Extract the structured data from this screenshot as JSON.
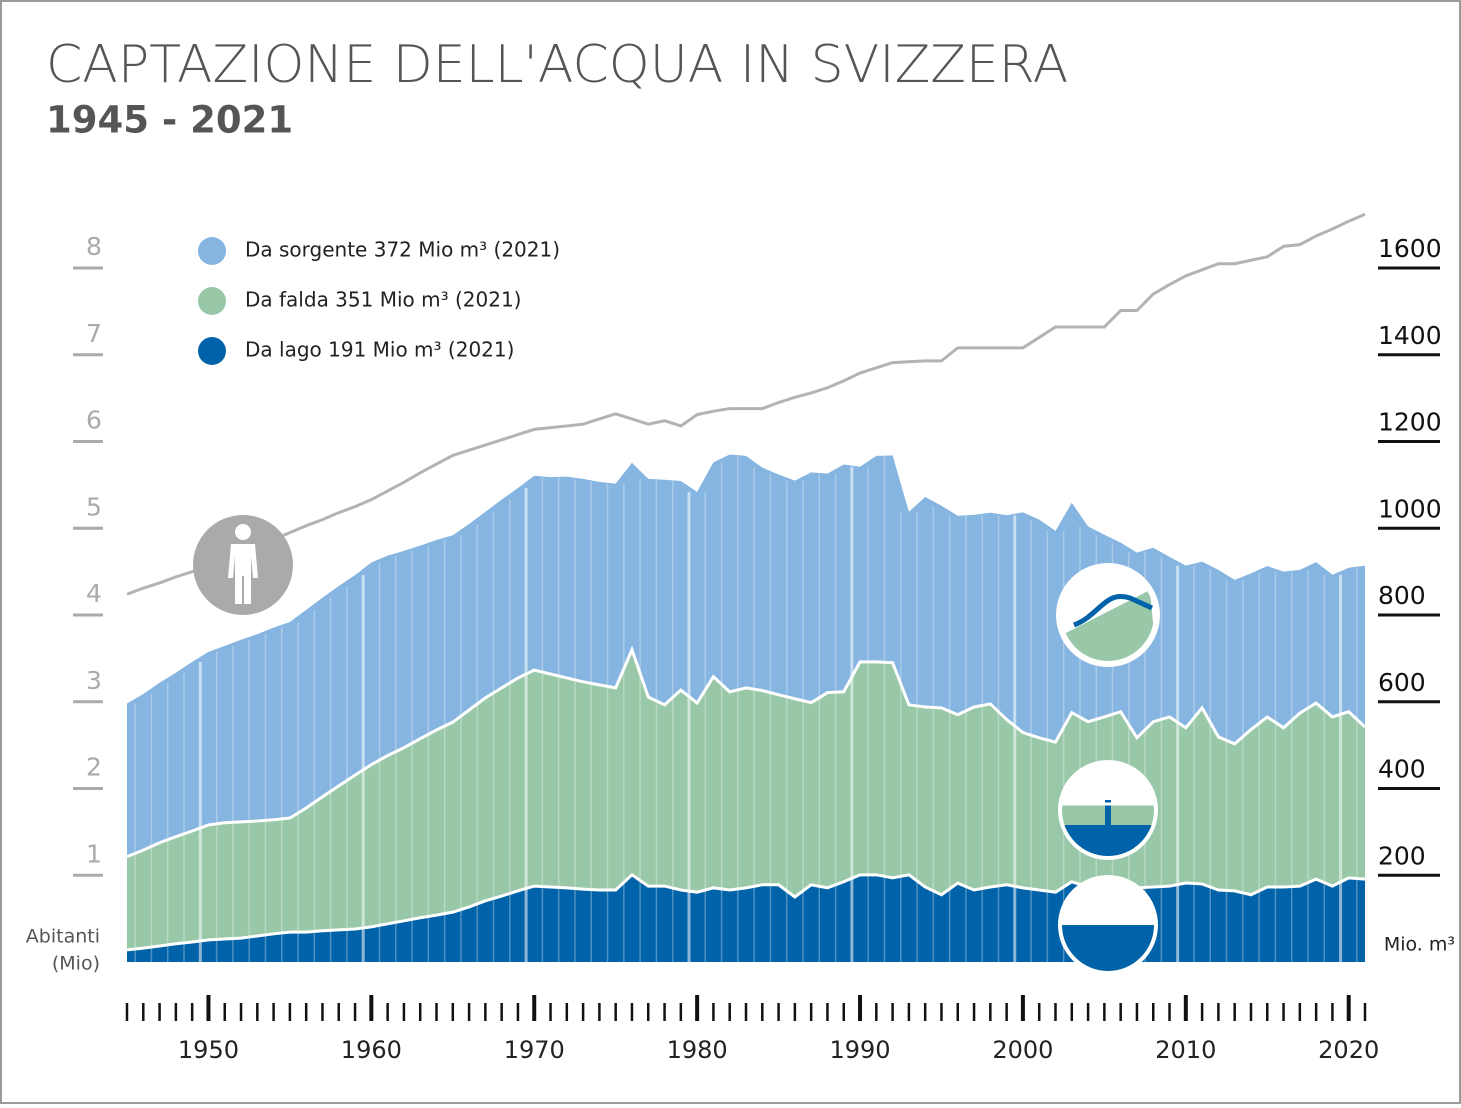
{
  "chart_data": {
    "type": "stacked-area",
    "title": "CAPTAZIONE DELL'ACQUA IN SVIZZERA",
    "subtitle": "1945 - 2021",
    "y_label_lines": [
      "Abitanti",
      "(Mio)"
    ],
    "y2_label": "Mio. m³",
    "x": [
      1945,
      1946,
      1947,
      1948,
      1949,
      1950,
      1951,
      1952,
      1953,
      1954,
      1955,
      1956,
      1957,
      1958,
      1959,
      1960,
      1961,
      1962,
      1963,
      1964,
      1965,
      1966,
      1967,
      1968,
      1969,
      1970,
      1971,
      1972,
      1973,
      1974,
      1975,
      1976,
      1977,
      1978,
      1979,
      1980,
      1981,
      1982,
      1983,
      1984,
      1985,
      1986,
      1987,
      1988,
      1989,
      1990,
      1991,
      1992,
      1993,
      1994,
      1995,
      1996,
      1997,
      1998,
      1999,
      2000,
      2001,
      2002,
      2003,
      2004,
      2005,
      2006,
      2007,
      2008,
      2009,
      2010,
      2011,
      2012,
      2013,
      2014,
      2015,
      2016,
      2017,
      2018,
      2019,
      2020,
      2021
    ],
    "xlim": [
      1945,
      2021
    ],
    "xticks": [
      1950,
      1960,
      1970,
      1980,
      1990,
      2000,
      2010,
      2020
    ],
    "ylim": [
      0,
      8.75
    ],
    "yticks": [
      1,
      2,
      3,
      4,
      5,
      6,
      7,
      8
    ],
    "y2lim": [
      0,
      1750
    ],
    "y2ticks": [
      200,
      400,
      600,
      800,
      1000,
      1200,
      1400,
      1600
    ],
    "series": [
      {
        "name": "Da lago 191 Mio m³ (2021)",
        "color": "#0062a8",
        "axis": "y2",
        "values": [
          28,
          32,
          37,
          42,
          46,
          51,
          53,
          55,
          60,
          65,
          69,
          69,
          72,
          74,
          76,
          81,
          88,
          95,
          102,
          108,
          115,
          127,
          141,
          152,
          164,
          175,
          173,
          171,
          168,
          166,
          166,
          201,
          175,
          175,
          166,
          161,
          171,
          166,
          171,
          178,
          178,
          150,
          178,
          171,
          185,
          201,
          201,
          194,
          201,
          173,
          155,
          182,
          166,
          173,
          178,
          171,
          166,
          161,
          185,
          173,
          161,
          178,
          171,
          173,
          175,
          182,
          180,
          166,
          164,
          155,
          173,
          173,
          175,
          191,
          175,
          194,
          191
        ]
      },
      {
        "name": "Da falda 351 Mio m³ (2021)",
        "color": "#98c8a8",
        "axis": "y2",
        "values": [
          215,
          226,
          238,
          247,
          256,
          265,
          268,
          268,
          265,
          263,
          263,
          286,
          309,
          332,
          355,
          374,
          388,
          399,
          413,
          427,
          438,
          454,
          468,
          480,
          491,
          498,
          491,
          484,
          478,
          473,
          466,
          519,
          436,
          418,
          461,
          436,
          487,
          457,
          461,
          448,
          438,
          457,
          420,
          450,
          438,
          491,
          491,
          496,
          392,
          415,
          431,
          388,
          422,
          422,
          381,
          358,
          351,
          346,
          390,
          381,
          404,
          399,
          346,
          381,
          390,
          358,
          406,
          353,
          339,
          381,
          392,
          367,
          399,
          406,
          390,
          383,
          351
        ]
      },
      {
        "name": "Da sorgente 372 Mio m³ (2021)",
        "color": "#85b5e0",
        "axis": "y2",
        "values": [
          353,
          360,
          369,
          378,
          390,
          399,
          408,
          420,
          431,
          443,
          452,
          457,
          459,
          461,
          461,
          466,
          461,
          454,
          445,
          438,
          431,
          429,
          429,
          434,
          438,
          448,
          454,
          464,
          468,
          468,
          471,
          431,
          503,
          519,
          482,
          487,
          494,
          547,
          535,
          514,
          508,
          503,
          531,
          505,
          524,
          450,
          475,
          478,
          445,
          484,
          466,
          459,
          443,
          441,
          471,
          508,
          503,
          487,
          484,
          450,
          420,
          390,
          427,
          401,
          369,
          374,
          337,
          385,
          378,
          360,
          348,
          360,
          330,
          325,
          328,
          332,
          372
        ]
      }
    ],
    "population": {
      "color": "#b3b3b3",
      "values": [
        4.24,
        4.31,
        4.37,
        4.44,
        4.5,
        4.57,
        4.65,
        4.72,
        4.8,
        4.87,
        4.95,
        5.03,
        5.1,
        5.18,
        5.25,
        5.33,
        5.43,
        5.53,
        5.64,
        5.74,
        5.84,
        5.9,
        5.96,
        6.02,
        6.08,
        6.14,
        6.16,
        6.18,
        6.2,
        6.26,
        6.32,
        6.26,
        6.2,
        6.24,
        6.18,
        6.31,
        6.35,
        6.38,
        6.38,
        6.38,
        6.45,
        6.51,
        6.56,
        6.62,
        6.7,
        6.79,
        6.85,
        6.91,
        6.92,
        6.93,
        6.93,
        7.08,
        7.08,
        7.08,
        7.08,
        7.08,
        7.2,
        7.32,
        7.32,
        7.32,
        7.32,
        7.51,
        7.51,
        7.7,
        7.81,
        7.91,
        7.98,
        8.05,
        8.05,
        8.09,
        8.13,
        8.25,
        8.27,
        8.37,
        8.45,
        8.54,
        8.62
      ]
    }
  }
}
